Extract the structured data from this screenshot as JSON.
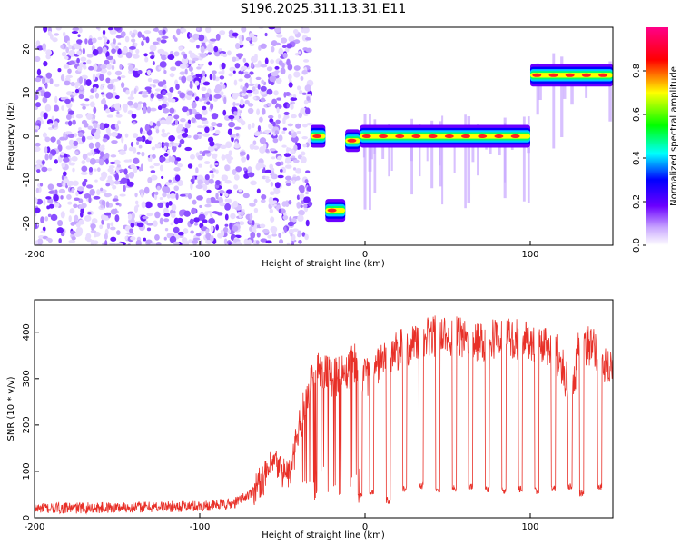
{
  "chart_data": [
    {
      "type": "heatmap",
      "title": "S196.2025.311.13.31.E11",
      "xlabel": "Height of straight line (km)",
      "ylabel": "Frequency (Hz)",
      "xlim": [
        -200,
        150
      ],
      "ylim": [
        -25,
        25
      ],
      "x_ticks": [
        -200,
        -100,
        0,
        100
      ],
      "y_ticks": [
        -20,
        -10,
        0,
        10,
        20
      ],
      "noise_region": {
        "x_range": [
          -200,
          -33
        ],
        "description_value": "diffuse low-amplitude noise"
      },
      "segments": [
        {
          "x_start": -33,
          "x_end": -24,
          "frequency_hz": 0
        },
        {
          "x_start": -24,
          "x_end": -12,
          "frequency_hz": -17
        },
        {
          "x_start": -12,
          "x_end": -3,
          "frequency_hz": -1
        },
        {
          "x_start": -3,
          "x_end": 100,
          "frequency_hz": 0
        },
        {
          "x_start": 100,
          "x_end": 150,
          "frequency_hz": 14
        }
      ],
      "colorbar": {
        "label": "Normalized spectral amplitude",
        "range": [
          0.0,
          1.0
        ],
        "ticks": [
          "0.0",
          "0.2",
          "0.4",
          "0.6",
          "0.8"
        ],
        "stops": [
          "#ffffff",
          "#6b00ff",
          "#0000ff",
          "#00ffff",
          "#00ff00",
          "#ffff00",
          "#ff0000",
          "#ff0088"
        ]
      }
    },
    {
      "type": "line",
      "xlabel": "Height of straight line (km)",
      "ylabel": "SNR (10 * v/v)",
      "xlim": [
        -200,
        150
      ],
      "ylim": [
        0,
        470
      ],
      "x_ticks": [
        -200,
        -100,
        0,
        100
      ],
      "y_ticks": [
        0,
        100,
        200,
        300,
        400
      ],
      "color": "#e83028",
      "series": [
        {
          "name": "SNR envelope",
          "x": [
            -200,
            -150,
            -100,
            -80,
            -70,
            -60,
            -55,
            -50,
            -45,
            -40,
            -35,
            -30,
            -20,
            -10,
            -5,
            0,
            5,
            10,
            20,
            30,
            40,
            50,
            60,
            70,
            80,
            90,
            100,
            105,
            110,
            115,
            120,
            125,
            130,
            135,
            140,
            145,
            150
          ],
          "y": [
            20,
            22,
            25,
            30,
            50,
            90,
            120,
            100,
            95,
            190,
            260,
            330,
            300,
            320,
            340,
            300,
            320,
            340,
            360,
            380,
            390,
            395,
            385,
            380,
            390,
            385,
            380,
            375,
            370,
            360,
            320,
            260,
            380,
            370,
            360,
            320,
            330
          ]
        },
        {
          "name": "SNR dips",
          "x": [
            -3,
            4,
            14,
            24,
            34,
            44,
            54,
            64,
            74,
            84,
            94,
            104,
            114,
            124,
            131,
            142
          ],
          "y": [
            40,
            45,
            30,
            55,
            60,
            50,
            55,
            60,
            55,
            50,
            55,
            50,
            55,
            60,
            45,
            60
          ]
        }
      ]
    }
  ]
}
